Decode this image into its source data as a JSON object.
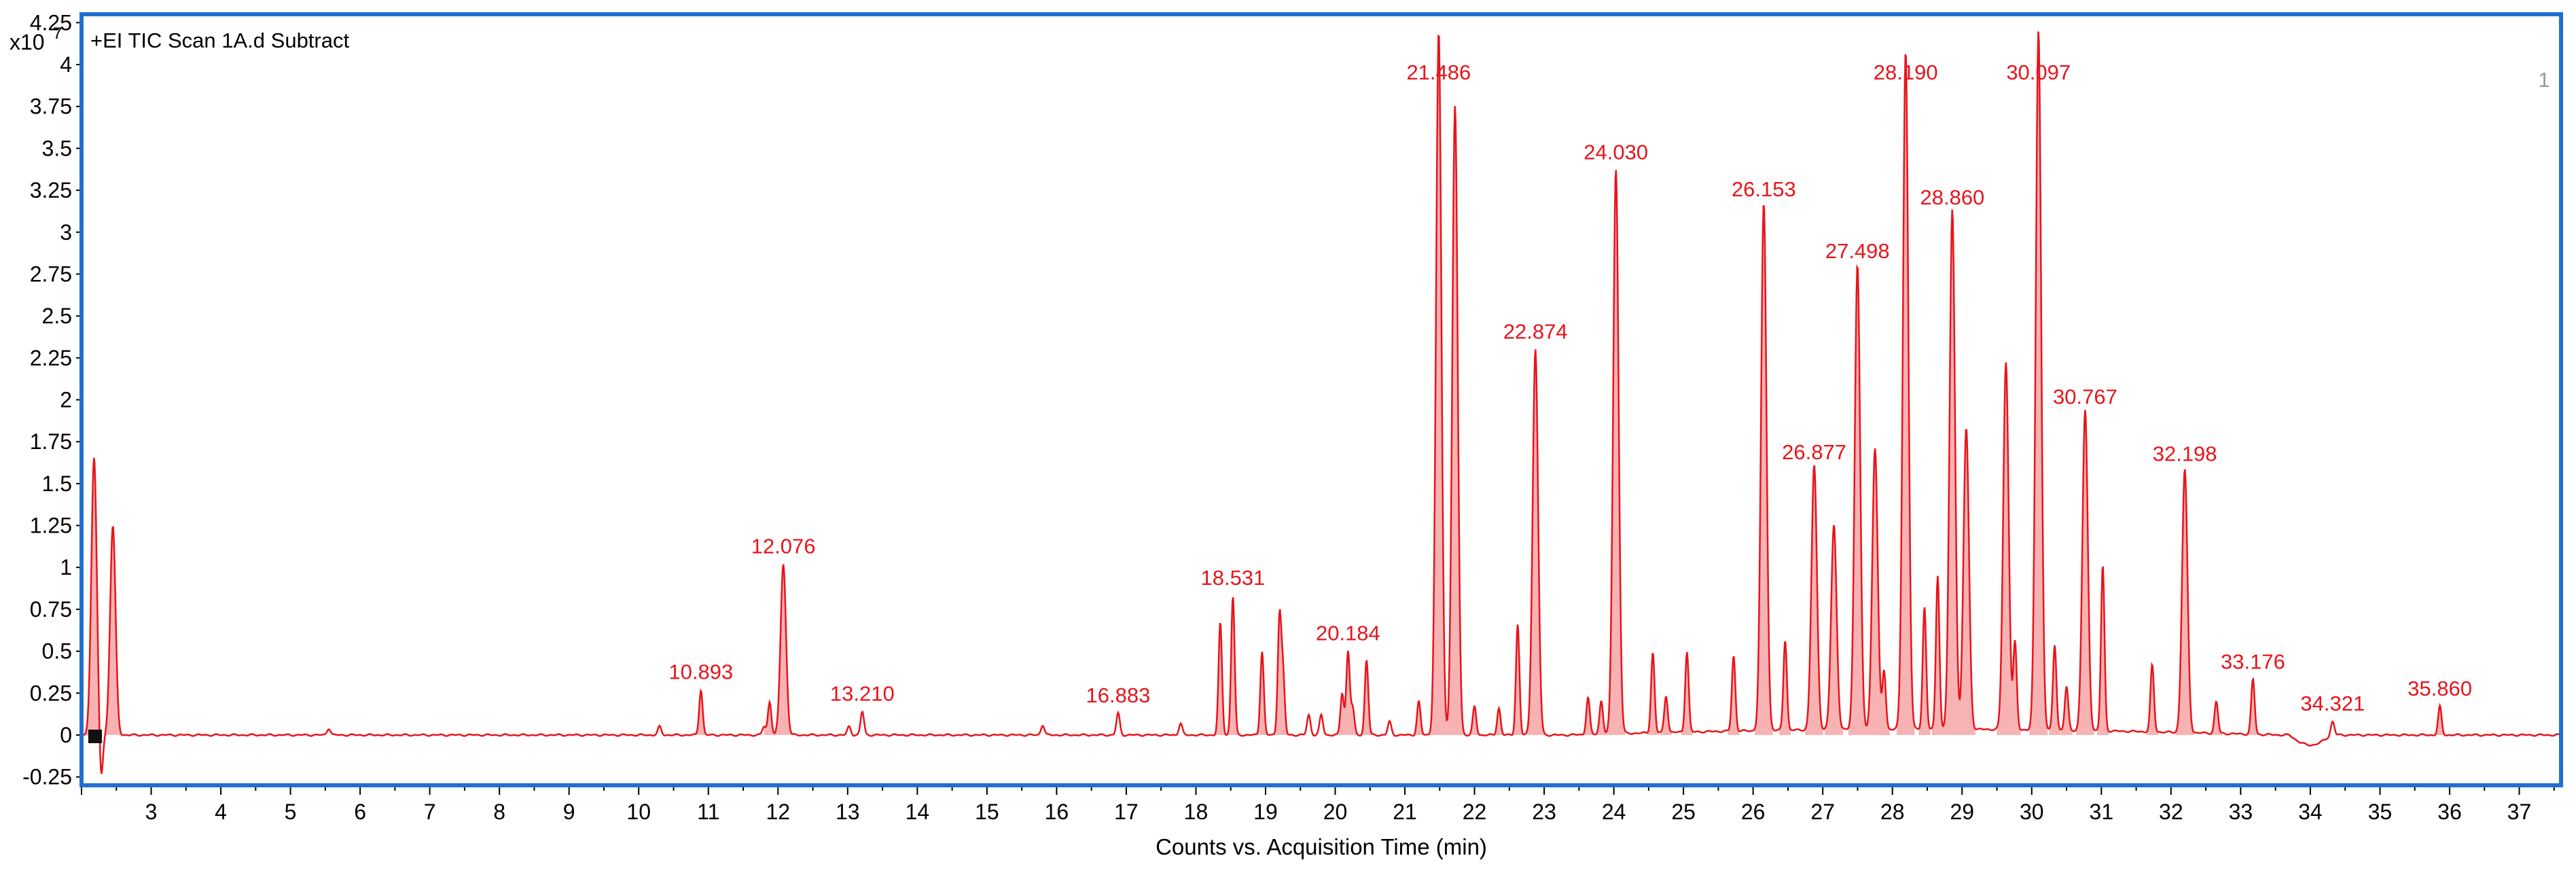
{
  "panel": {
    "title": "+EI TIC Scan 1A.d  Subtract",
    "index_label": "1",
    "frame_color": "#1f6fd1"
  },
  "chart_data": {
    "type": "line",
    "title": "+EI TIC Scan 1A.d  Subtract",
    "xlabel": "Counts vs. Acquisition Time (min)",
    "ylabel": "",
    "y_multiplier_label": "x10",
    "y_multiplier_exponent": "7",
    "xlim": [
      2.0,
      37.6
    ],
    "ylim": [
      -0.3,
      4.3
    ],
    "x_ticks": [
      3,
      4,
      5,
      6,
      7,
      8,
      9,
      10,
      11,
      12,
      13,
      14,
      15,
      16,
      17,
      18,
      19,
      20,
      21,
      22,
      23,
      24,
      25,
      26,
      27,
      28,
      29,
      30,
      31,
      32,
      33,
      34,
      35,
      36,
      37
    ],
    "y_ticks": [
      -0.25,
      0,
      0.25,
      0.5,
      0.75,
      1,
      1.25,
      1.5,
      1.75,
      2,
      2.25,
      2.5,
      2.75,
      3,
      3.25,
      3.5,
      3.75,
      4,
      4.25
    ],
    "y_tick_labels": [
      "-0.25",
      "0",
      "0.25",
      "0.5",
      "0.75",
      "1",
      "1.25",
      "1.5",
      "1.75",
      "2",
      "2.25",
      "2.5",
      "2.75",
      "3",
      "3.25",
      "3.5",
      "3.75",
      "4",
      "4.25"
    ],
    "line_color": "#e8141b",
    "fill_color": "#f7b3b3",
    "grid": false,
    "labeled_peaks": [
      {
        "rt": 10.893,
        "height": 0.27,
        "label": "10.893"
      },
      {
        "rt": 12.076,
        "height": 1.02,
        "label": "12.076"
      },
      {
        "rt": 13.21,
        "height": 0.14,
        "label": "13.210"
      },
      {
        "rt": 16.883,
        "height": 0.13,
        "label": "16.883"
      },
      {
        "rt": 18.531,
        "height": 0.83,
        "label": "18.531"
      },
      {
        "rt": 20.184,
        "height": 0.5,
        "label": "20.184"
      },
      {
        "rt": 21.486,
        "height": 4.2,
        "label": "21.486"
      },
      {
        "rt": 22.874,
        "height": 2.3,
        "label": "22.874"
      },
      {
        "rt": 24.03,
        "height": 3.37,
        "label": "24.030"
      },
      {
        "rt": 26.153,
        "height": 3.15,
        "label": "26.153"
      },
      {
        "rt": 26.877,
        "height": 1.58,
        "label": "26.877"
      },
      {
        "rt": 27.498,
        "height": 2.78,
        "label": "27.498"
      },
      {
        "rt": 28.19,
        "height": 4.05,
        "label": "28.190"
      },
      {
        "rt": 28.86,
        "height": 3.1,
        "label": "28.860"
      },
      {
        "rt": 30.097,
        "height": 4.18,
        "label": "30.097"
      },
      {
        "rt": 30.767,
        "height": 1.91,
        "label": "30.767"
      },
      {
        "rt": 32.198,
        "height": 1.57,
        "label": "32.198"
      },
      {
        "rt": 33.176,
        "height": 0.33,
        "label": "33.176"
      },
      {
        "rt": 34.321,
        "height": 0.08,
        "label": "34.321"
      },
      {
        "rt": 35.86,
        "height": 0.17,
        "label": "35.860"
      }
    ],
    "minor_peaks": [
      {
        "rt": 2.18,
        "height": 1.66
      },
      {
        "rt": 2.28,
        "height": -0.28
      },
      {
        "rt": 2.45,
        "height": 1.25
      },
      {
        "rt": 5.55,
        "height": 0.04
      },
      {
        "rt": 10.3,
        "height": 0.05
      },
      {
        "rt": 11.8,
        "height": 0.05
      },
      {
        "rt": 11.88,
        "height": 0.2
      },
      {
        "rt": 13.02,
        "height": 0.05
      },
      {
        "rt": 15.8,
        "height": 0.06
      },
      {
        "rt": 17.78,
        "height": 0.07
      },
      {
        "rt": 18.35,
        "height": 0.67
      },
      {
        "rt": 18.95,
        "height": 0.5
      },
      {
        "rt": 19.2,
        "height": 0.7
      },
      {
        "rt": 19.25,
        "height": 0.36
      },
      {
        "rt": 19.62,
        "height": 0.12
      },
      {
        "rt": 19.8,
        "height": 0.12
      },
      {
        "rt": 20.1,
        "height": 0.25
      },
      {
        "rt": 20.25,
        "height": 0.16
      },
      {
        "rt": 20.45,
        "height": 0.45
      },
      {
        "rt": 20.78,
        "height": 0.08
      },
      {
        "rt": 21.2,
        "height": 0.2
      },
      {
        "rt": 21.72,
        "height": 3.75
      },
      {
        "rt": 22.0,
        "height": 0.17
      },
      {
        "rt": 22.35,
        "height": 0.16
      },
      {
        "rt": 22.62,
        "height": 0.66
      },
      {
        "rt": 23.63,
        "height": 0.22
      },
      {
        "rt": 23.82,
        "height": 0.2
      },
      {
        "rt": 24.56,
        "height": 0.48
      },
      {
        "rt": 24.75,
        "height": 0.22
      },
      {
        "rt": 25.05,
        "height": 0.48
      },
      {
        "rt": 25.72,
        "height": 0.45
      },
      {
        "rt": 26.46,
        "height": 0.54
      },
      {
        "rt": 27.16,
        "height": 1.22
      },
      {
        "rt": 27.75,
        "height": 1.68
      },
      {
        "rt": 27.88,
        "height": 0.35
      },
      {
        "rt": 28.46,
        "height": 0.73
      },
      {
        "rt": 28.65,
        "height": 0.92
      },
      {
        "rt": 29.06,
        "height": 1.8
      },
      {
        "rt": 29.63,
        "height": 2.19
      },
      {
        "rt": 29.76,
        "height": 0.52
      },
      {
        "rt": 30.33,
        "height": 0.51
      },
      {
        "rt": 30.5,
        "height": 0.26
      },
      {
        "rt": 31.02,
        "height": 0.99
      },
      {
        "rt": 31.73,
        "height": 0.4
      },
      {
        "rt": 32.65,
        "height": 0.19
      }
    ]
  }
}
